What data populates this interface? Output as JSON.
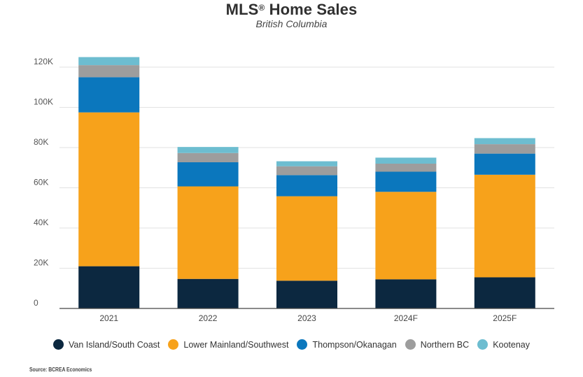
{
  "chart_data": {
    "type": "bar",
    "stacked": true,
    "title": "MLS",
    "title_sup": "®",
    "title_rest": " Home Sales",
    "subtitle": "British Columbia",
    "source": "Source: BCREA Economics",
    "categories": [
      "2021",
      "2022",
      "2023",
      "2024F",
      "2025F"
    ],
    "series": [
      {
        "name": "Van Island/South Coast",
        "color": "#0c2840",
        "values": [
          21000,
          14700,
          13800,
          14500,
          15500
        ]
      },
      {
        "name": "Lower Mainland/Southwest",
        "color": "#f7a21b",
        "values": [
          76500,
          46000,
          42000,
          43500,
          51000
        ]
      },
      {
        "name": "Thompson/Okanagan",
        "color": "#0b77bd",
        "values": [
          17500,
          12000,
          10500,
          10000,
          10500
        ]
      },
      {
        "name": "Northern BC",
        "color": "#9d9d9d",
        "values": [
          6000,
          4600,
          4400,
          4000,
          4700
        ]
      },
      {
        "name": "Kootenay",
        "color": "#6dbdd0",
        "values": [
          4000,
          3000,
          2500,
          3000,
          3000
        ]
      }
    ],
    "y_ticks": [
      {
        "value": 0,
        "label": "0"
      },
      {
        "value": 20000,
        "label": "20K"
      },
      {
        "value": 40000,
        "label": "40K"
      },
      {
        "value": 60000,
        "label": "60K"
      },
      {
        "value": 80000,
        "label": "80K"
      },
      {
        "value": 100000,
        "label": "100K"
      },
      {
        "value": 120000,
        "label": "120K"
      }
    ],
    "ylim": [
      0,
      120000
    ],
    "grid": true,
    "legend_position": "bottom"
  }
}
